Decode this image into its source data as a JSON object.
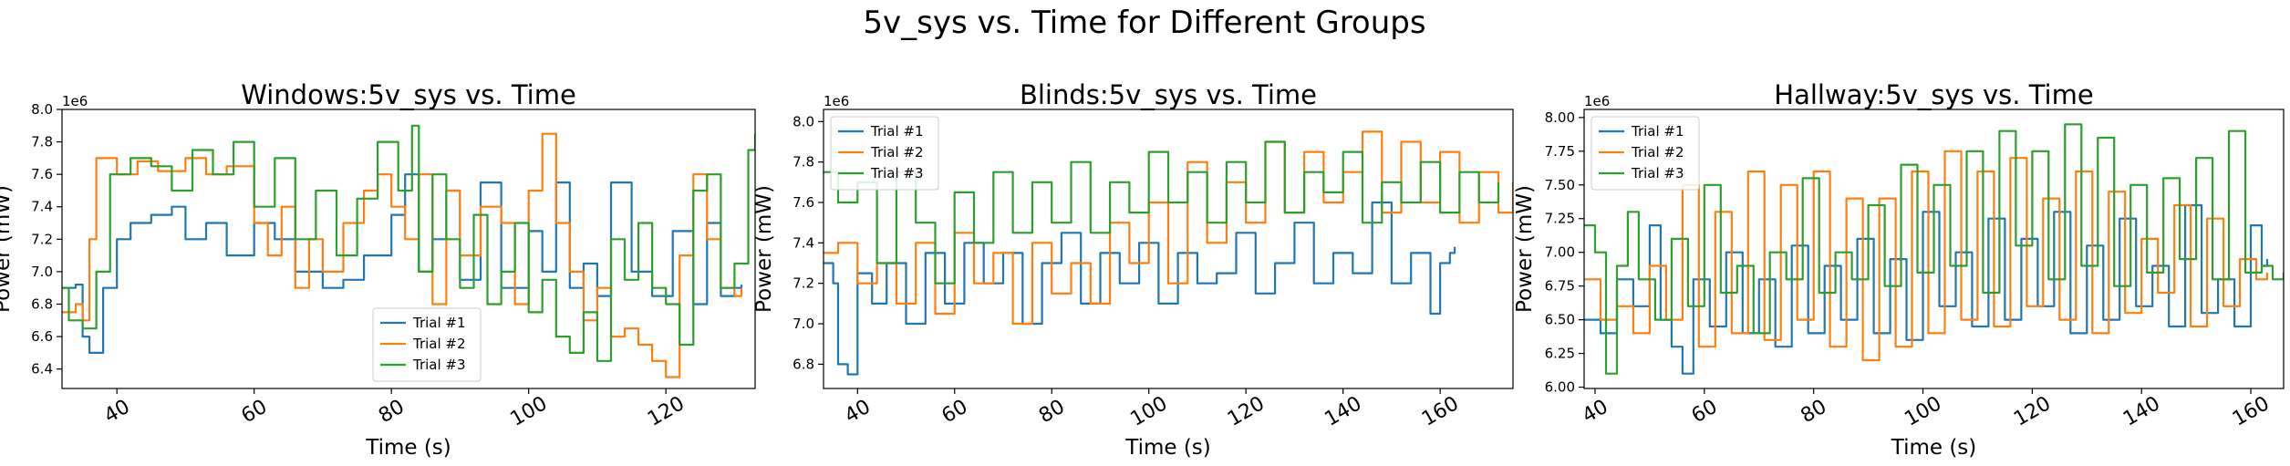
{
  "figure": {
    "title": "5v_sys vs. Time for Different Groups"
  },
  "colors": {
    "Trial #1": "#1f77b4",
    "Trial #2": "#ff7f0e",
    "Trial #3": "#2ca02c"
  },
  "chart_data": [
    {
      "type": "line",
      "title": "Windows:5v_sys vs. Time",
      "xlabel": "Time (s)",
      "ylabel": "Power (mW)",
      "y_offset_label": "1e6",
      "xlim": [
        32,
        133
      ],
      "ylim": [
        6.28,
        8.0
      ],
      "xticks": [
        40,
        60,
        80,
        100,
        120
      ],
      "yticks": [
        6.4,
        6.6,
        6.8,
        7.0,
        7.2,
        7.4,
        7.6,
        7.8,
        8.0
      ],
      "legend": "lower-center",
      "series": [
        {
          "name": "Trial #1",
          "x": [
            32,
            34,
            35,
            36,
            38,
            40,
            42,
            45,
            48,
            50,
            53,
            56,
            60,
            63,
            66,
            70,
            73,
            76,
            80,
            82,
            84,
            86,
            88,
            90,
            93,
            96,
            100,
            102,
            104,
            106,
            108,
            110,
            112,
            115,
            118,
            121,
            124,
            126,
            128,
            130,
            131
          ],
          "y": [
            6.9,
            6.92,
            6.6,
            6.5,
            6.9,
            7.2,
            7.3,
            7.35,
            7.4,
            7.2,
            7.3,
            7.1,
            7.3,
            7.2,
            7.0,
            6.9,
            6.95,
            7.1,
            7.35,
            7.6,
            7.0,
            7.2,
            7.5,
            6.95,
            7.55,
            6.9,
            7.25,
            7.0,
            7.55,
            6.9,
            7.05,
            6.85,
            7.55,
            7.0,
            6.85,
            7.25,
            6.8,
            7.3,
            6.85,
            6.9,
            6.92
          ]
        },
        {
          "name": "Trial #2",
          "x": [
            32,
            34,
            35,
            36,
            37,
            40,
            43,
            46,
            50,
            53,
            56,
            60,
            62,
            64,
            66,
            68,
            70,
            73,
            76,
            78,
            80,
            82,
            84,
            86,
            88,
            90,
            93,
            96,
            98,
            100,
            102,
            104,
            106,
            108,
            110,
            112,
            114,
            116,
            118,
            120,
            122,
            124,
            126,
            128,
            130,
            131
          ],
          "y": [
            6.75,
            6.8,
            6.7,
            7.2,
            7.7,
            7.6,
            7.68,
            7.62,
            7.7,
            7.6,
            7.65,
            7.3,
            7.1,
            7.4,
            6.9,
            7.2,
            7.0,
            7.3,
            7.5,
            7.6,
            7.4,
            7.2,
            7.6,
            6.8,
            7.5,
            7.1,
            7.4,
            7.3,
            6.8,
            7.5,
            7.85,
            7.3,
            7.0,
            6.7,
            6.9,
            6.6,
            6.65,
            6.55,
            6.45,
            6.35,
            7.1,
            7.6,
            7.2,
            6.9,
            6.85,
            6.9
          ]
        },
        {
          "name": "Trial #3",
          "x": [
            32,
            33,
            35,
            37,
            39,
            42,
            45,
            48,
            51,
            54,
            57,
            60,
            63,
            66,
            69,
            72,
            75,
            78,
            81,
            83,
            84,
            86,
            88,
            90,
            92,
            94,
            96,
            98,
            100,
            102,
            104,
            106,
            108,
            110,
            112,
            114,
            116,
            118,
            120,
            122,
            124,
            126,
            128,
            130,
            132,
            133
          ],
          "y": [
            6.9,
            6.7,
            6.65,
            7.0,
            7.6,
            7.7,
            7.65,
            7.5,
            7.75,
            7.6,
            7.8,
            7.4,
            7.7,
            7.2,
            7.5,
            7.1,
            7.45,
            7.8,
            7.5,
            7.9,
            7.0,
            7.6,
            7.2,
            6.9,
            7.35,
            6.8,
            7.0,
            7.3,
            6.75,
            6.95,
            6.6,
            6.5,
            6.75,
            6.45,
            7.2,
            6.95,
            7.3,
            6.9,
            6.8,
            6.55,
            7.5,
            7.6,
            6.9,
            7.05,
            7.75,
            7.85
          ]
        }
      ]
    },
    {
      "type": "line",
      "title": "Blinds:5v_sys vs. Time",
      "xlabel": "Time (s)",
      "ylabel": "Power (mW)",
      "y_offset_label": "1e6",
      "xlim": [
        33,
        175
      ],
      "ylim": [
        6.68,
        8.06
      ],
      "xticks": [
        40,
        60,
        80,
        100,
        120,
        140,
        160
      ],
      "yticks": [
        6.8,
        7.0,
        7.2,
        7.4,
        7.6,
        7.8,
        8.0
      ],
      "legend": "upper-left",
      "series": [
        {
          "name": "Trial #1",
          "x": [
            33,
            35,
            36,
            38,
            40,
            43,
            46,
            50,
            54,
            58,
            62,
            66,
            70,
            74,
            78,
            82,
            86,
            90,
            94,
            98,
            102,
            106,
            110,
            114,
            118,
            122,
            126,
            130,
            134,
            138,
            142,
            146,
            150,
            154,
            158,
            160,
            162,
            163
          ],
          "y": [
            7.3,
            7.2,
            6.8,
            6.75,
            7.25,
            7.1,
            7.3,
            7.0,
            7.35,
            7.1,
            7.4,
            7.2,
            7.35,
            7.0,
            7.3,
            7.45,
            7.1,
            7.35,
            7.2,
            7.4,
            7.1,
            7.35,
            7.2,
            7.25,
            7.45,
            7.15,
            7.3,
            7.5,
            7.2,
            7.35,
            7.25,
            7.6,
            7.2,
            7.35,
            7.05,
            7.3,
            7.35,
            7.38
          ]
        },
        {
          "name": "Trial #2",
          "x": [
            33,
            36,
            40,
            44,
            48,
            52,
            56,
            60,
            64,
            68,
            72,
            76,
            80,
            84,
            88,
            92,
            96,
            100,
            104,
            108,
            112,
            116,
            120,
            124,
            128,
            132,
            136,
            140,
            144,
            148,
            152,
            156,
            160,
            164,
            168,
            172,
            175
          ],
          "y": [
            7.35,
            7.4,
            7.2,
            7.3,
            7.1,
            7.4,
            7.05,
            7.45,
            7.2,
            7.35,
            7.0,
            7.4,
            7.15,
            7.3,
            7.1,
            7.5,
            7.3,
            7.6,
            7.2,
            7.8,
            7.4,
            7.7,
            7.5,
            7.9,
            7.55,
            7.85,
            7.6,
            7.75,
            7.95,
            7.55,
            7.9,
            7.6,
            7.85,
            7.5,
            7.75,
            7.55,
            7.7
          ]
        },
        {
          "name": "Trial #3",
          "x": [
            33,
            36,
            40,
            44,
            48,
            52,
            56,
            60,
            64,
            68,
            72,
            76,
            80,
            84,
            88,
            92,
            96,
            100,
            104,
            108,
            112,
            116,
            120,
            124,
            128,
            132,
            136,
            140,
            144,
            148,
            152,
            156,
            160,
            164,
            168,
            172
          ],
          "y": [
            7.75,
            7.6,
            7.7,
            7.3,
            7.75,
            7.5,
            7.2,
            7.65,
            7.4,
            7.75,
            7.45,
            7.7,
            7.5,
            7.8,
            7.45,
            7.7,
            7.55,
            7.85,
            7.6,
            7.75,
            7.5,
            7.8,
            7.6,
            7.9,
            7.55,
            7.75,
            7.65,
            7.85,
            7.5,
            7.7,
            7.6,
            7.8,
            7.55,
            7.75,
            7.6,
            7.7
          ]
        }
      ]
    },
    {
      "type": "line",
      "title": "Hallway:5v_sys vs. Time",
      "xlabel": "Time (s)",
      "ylabel": "Power (mW)",
      "y_offset_label": "1e6",
      "xlim": [
        38,
        166
      ],
      "ylim": [
        5.99,
        8.06
      ],
      "xticks": [
        40,
        60,
        80,
        100,
        120,
        140,
        160
      ],
      "yticks": [
        6.0,
        6.25,
        6.5,
        6.75,
        7.0,
        7.25,
        7.5,
        7.75,
        8.0
      ],
      "legend": "upper-left",
      "series": [
        {
          "name": "Trial #1",
          "x": [
            38,
            41,
            44,
            47,
            50,
            52,
            54,
            56,
            58,
            61,
            64,
            67,
            70,
            73,
            76,
            79,
            82,
            85,
            88,
            91,
            94,
            97,
            100,
            103,
            106,
            109,
            112,
            115,
            118,
            121,
            124,
            127,
            130,
            133,
            136,
            139,
            142,
            145,
            148,
            151,
            154,
            157,
            160,
            162,
            163
          ],
          "y": [
            6.5,
            6.4,
            6.8,
            6.6,
            7.2,
            6.5,
            6.3,
            6.1,
            6.8,
            6.45,
            7.0,
            6.4,
            6.8,
            6.3,
            7.05,
            6.4,
            6.9,
            6.5,
            7.1,
            6.4,
            6.95,
            6.35,
            7.3,
            6.6,
            7.0,
            6.45,
            7.25,
            6.5,
            7.1,
            6.6,
            7.3,
            6.4,
            7.05,
            6.5,
            7.25,
            6.6,
            6.9,
            6.45,
            7.35,
            6.55,
            6.8,
            6.45,
            7.2,
            6.9,
            6.95
          ]
        },
        {
          "name": "Trial #2",
          "x": [
            38,
            41,
            44,
            47,
            50,
            53,
            56,
            59,
            62,
            65,
            68,
            71,
            74,
            77,
            80,
            83,
            86,
            89,
            92,
            95,
            98,
            101,
            104,
            107,
            110,
            113,
            116,
            119,
            122,
            125,
            128,
            131,
            134,
            137,
            140,
            143,
            146,
            149,
            152,
            155,
            158,
            161,
            163
          ],
          "y": [
            6.8,
            6.5,
            6.6,
            6.4,
            6.9,
            6.5,
            7.5,
            6.3,
            7.3,
            6.4,
            7.6,
            6.35,
            7.5,
            6.5,
            7.6,
            6.3,
            7.4,
            6.2,
            7.4,
            6.3,
            7.6,
            6.4,
            7.75,
            6.5,
            7.6,
            6.45,
            7.7,
            6.6,
            7.4,
            6.5,
            7.6,
            6.4,
            7.45,
            6.55,
            7.1,
            6.7,
            7.35,
            6.45,
            7.25,
            6.6,
            6.95,
            6.8,
            6.85
          ]
        },
        {
          "name": "Trial #3",
          "x": [
            38,
            40,
            42,
            44,
            46,
            48,
            51,
            54,
            57,
            60,
            63,
            66,
            69,
            72,
            75,
            78,
            81,
            84,
            87,
            90,
            93,
            96,
            99,
            102,
            105,
            108,
            111,
            114,
            117,
            120,
            123,
            126,
            129,
            132,
            135,
            138,
            141,
            144,
            147,
            150,
            153,
            156,
            159,
            162,
            164,
            166
          ],
          "y": [
            7.2,
            7.0,
            6.1,
            6.9,
            7.3,
            6.8,
            6.5,
            7.1,
            6.6,
            7.5,
            6.7,
            6.9,
            6.4,
            7.0,
            6.8,
            7.55,
            6.7,
            7.0,
            6.8,
            7.35,
            6.75,
            7.65,
            6.85,
            7.5,
            6.9,
            7.75,
            6.7,
            7.9,
            7.05,
            7.75,
            6.8,
            7.95,
            6.9,
            7.85,
            6.75,
            7.5,
            6.85,
            7.55,
            6.95,
            7.7,
            6.8,
            7.9,
            6.85,
            6.9,
            6.8,
            6.85
          ]
        }
      ]
    }
  ]
}
